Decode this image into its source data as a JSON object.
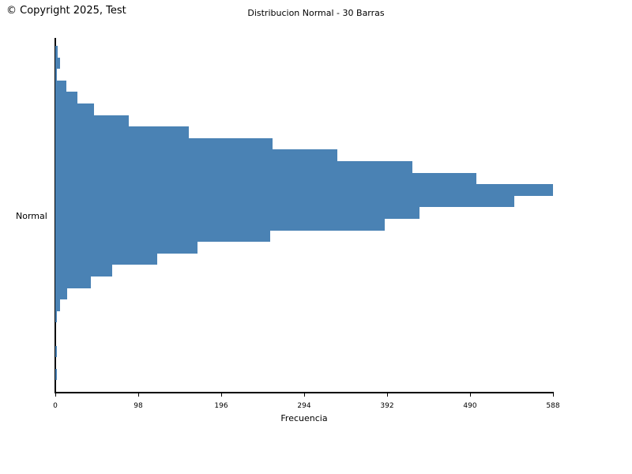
{
  "header": {
    "copyright": "© Copyright 2025, Test",
    "title": "Distribucion Normal - 30 Barras"
  },
  "chart_data": {
    "type": "bar",
    "orientation": "horizontal",
    "title": "Distribucion Normal - 30 Barras",
    "xlabel": "Frecuencia",
    "ylabel": "Normal",
    "bar_color": "#4a82b4",
    "axis_color": "#000000",
    "xlim": [
      0,
      588
    ],
    "x_ticks": [
      0,
      98,
      196,
      294,
      392,
      490,
      588
    ],
    "n_bars": 30,
    "values": [
      3,
      6,
      2,
      13,
      26,
      46,
      87,
      158,
      257,
      333,
      422,
      497,
      588,
      542,
      430,
      389,
      254,
      168,
      120,
      67,
      42,
      14,
      6,
      2,
      0,
      0,
      2,
      0,
      2,
      0
    ],
    "legend": null,
    "grid": false
  }
}
